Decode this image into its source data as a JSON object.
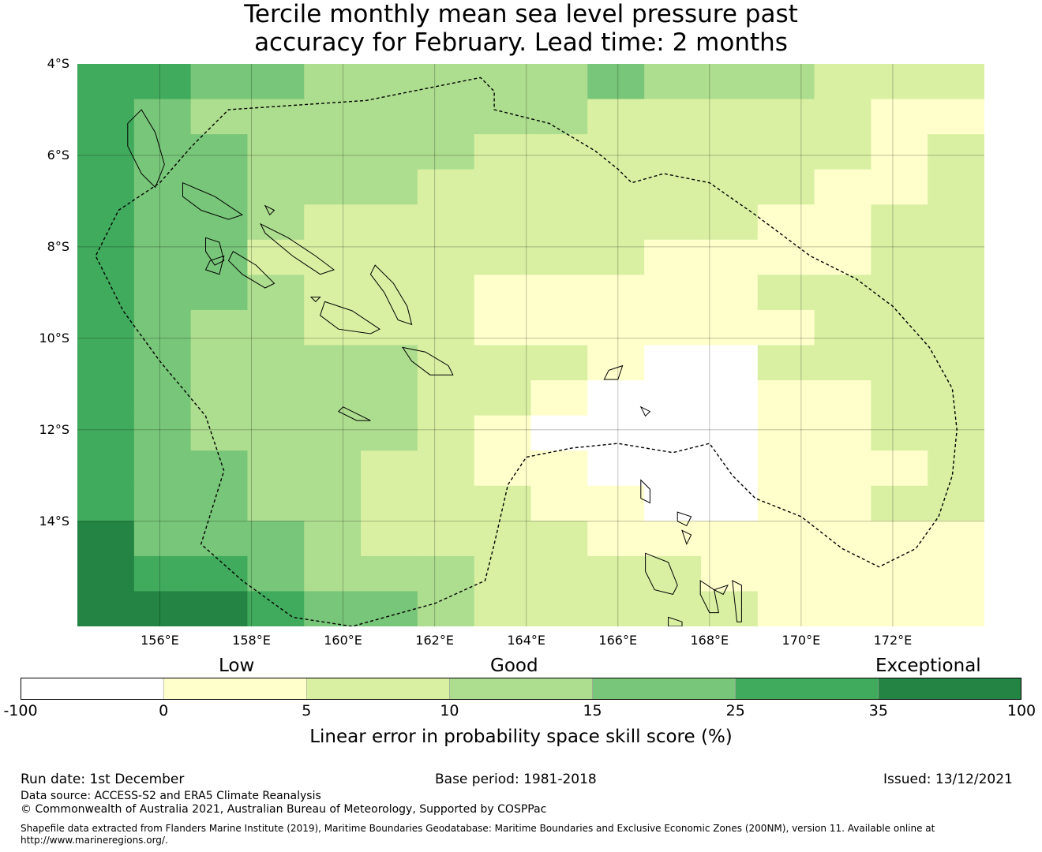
{
  "title": {
    "line1": "Tercile monthly mean sea level pressure past",
    "line2": "accuracy for February. Lead time: 2 months"
  },
  "map": {
    "lon_range": [
      154.2,
      174.0
    ],
    "lat_range": [
      -16.3,
      -4.0
    ],
    "lat_ticks": [
      {
        "value": -4,
        "label": "4°S"
      },
      {
        "value": -6,
        "label": "6°S"
      },
      {
        "value": -8,
        "label": "8°S"
      },
      {
        "value": -10,
        "label": "10°S"
      },
      {
        "value": -12,
        "label": "12°S"
      },
      {
        "value": -14,
        "label": "14°S"
      }
    ],
    "lon_ticks": [
      {
        "value": 156,
        "label": "156°E"
      },
      {
        "value": 158,
        "label": "158°E"
      },
      {
        "value": 160,
        "label": "160°E"
      },
      {
        "value": 162,
        "label": "162°E"
      },
      {
        "value": 164,
        "label": "164°E"
      },
      {
        "value": 166,
        "label": "166°E"
      },
      {
        "value": 168,
        "label": "168°E"
      },
      {
        "value": 170,
        "label": "170°E"
      },
      {
        "value": 172,
        "label": "172°E"
      }
    ],
    "grid_lines": true,
    "eez_boundary": "dashed",
    "category_colors": [
      "#ffffff",
      "#ffffcc",
      "#d9f0a3",
      "#addd8e",
      "#78c679",
      "#41ab5d",
      "#238443"
    ],
    "skill_grid_rows": [
      "5544333334333222",
      "5433333332222211",
      "5443333222222212",
      "5443332222222112",
      "5443222222221122",
      "5442222222111122",
      "5443222111112222",
      "5433222111111222",
      "5433332221002222",
      "5433332210001122",
      "5433332100001122",
      "5443322110001112",
      "5443322211001122",
      "6444322221111111",
      "6554333222211111",
      "6665443222221111"
    ]
  },
  "colorbar": {
    "boundaries": [
      "-100",
      "0",
      "5",
      "10",
      "15",
      "25",
      "35",
      "100"
    ],
    "colors": [
      "#ffffff",
      "#ffffcc",
      "#d9f0a3",
      "#addd8e",
      "#78c679",
      "#41ab5d",
      "#238443"
    ],
    "category_labels": {
      "low": "Low",
      "good": "Good",
      "exceptional": "Exceptional"
    },
    "label": "Linear error in probability space skill score (%)"
  },
  "footer": {
    "run_date": "Run date: 1st December",
    "base_period": "Base period: 1981-2018",
    "issued": "Issued: 13/12/2021",
    "data_source": "Data source: ACCESS-S2 and ERA5 Climate Reanalysis",
    "copyright": "© Commonwealth of Australia 2021, Australian Bureau of Meteorology, Supported by COSPPac",
    "shapefile_line1": "Shapefile data extracted from Flanders Marine Institute (2019), Maritime Boundaries Geodatabase: Maritime Boundaries and Exclusive Economic Zones (200NM), version 11. Available online at",
    "shapefile_line2": "http://www.marineregions.org/."
  }
}
